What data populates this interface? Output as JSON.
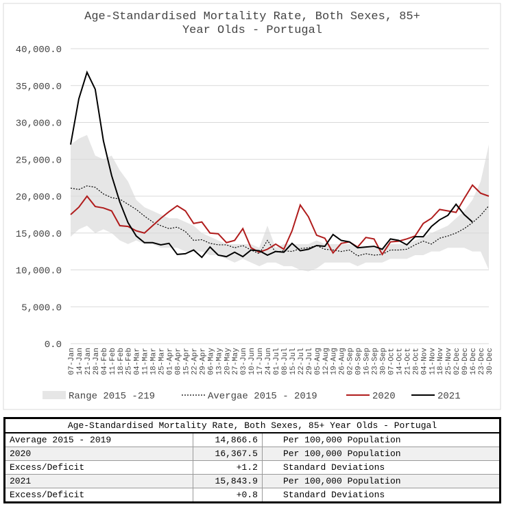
{
  "chart_data": {
    "type": "line",
    "title": [
      "Age-Standardised Mortality Rate, Both Sexes, 85+",
      "Year Olds - Portugal"
    ],
    "categories": [
      "07-Jan",
      "14-Jan",
      "21-Jan",
      "28-Jan",
      "04-Feb",
      "11-Feb",
      "18-Feb",
      "25-Feb",
      "04-Mar",
      "11-Mar",
      "18-Mar",
      "25-Mar",
      "01-Apr",
      "08-Apr",
      "15-Apr",
      "22-Apr",
      "29-Apr",
      "06-May",
      "13-May",
      "20-May",
      "27-May",
      "03-Jun",
      "10-Jun",
      "17-Jun",
      "24-Jun",
      "01-Jul",
      "08-Jul",
      "15-Jul",
      "22-Jul",
      "29-Jul",
      "05-Aug",
      "12-Aug",
      "19-Aug",
      "26-Aug",
      "02-Sep",
      "09-Sep",
      "16-Sep",
      "23-Sep",
      "30-Sep",
      "07-Oct",
      "14-Oct",
      "21-Oct",
      "28-Oct",
      "04-Nov",
      "11-Nov",
      "18-Nov",
      "25-Nov",
      "02-Dec",
      "09-Dec",
      "16-Dec",
      "23-Dec",
      "30-Dec"
    ],
    "ylim": [
      0,
      40000
    ],
    "yticks": [
      {
        "value": 0,
        "label": "0.0"
      },
      {
        "value": 5000,
        "label": "5,000.0"
      },
      {
        "value": 10000,
        "label": "10,000.0"
      },
      {
        "value": 15000,
        "label": "15,000.0"
      },
      {
        "value": 20000,
        "label": "20,000.0"
      },
      {
        "value": 25000,
        "label": "25,000.0"
      },
      {
        "value": 30000,
        "label": "30,000.0"
      },
      {
        "value": 35000,
        "label": "35,000.0"
      },
      {
        "value": 40000,
        "label": "40,000.0"
      }
    ],
    "grid": true,
    "legend": "bottom",
    "series": [
      {
        "name": "Range 2015 -219",
        "style": "range",
        "color": "#e6e6e6",
        "high": [
          27000,
          27800,
          28300,
          25500,
          25000,
          25500,
          23500,
          22000,
          19500,
          18500,
          18000,
          17500,
          17000,
          17000,
          16500,
          16000,
          15000,
          14500,
          14000,
          13500,
          13500,
          13500,
          13500,
          13000,
          16000,
          13000,
          13500,
          13500,
          13500,
          13500,
          14000,
          13500,
          13500,
          13500,
          13500,
          13000,
          13000,
          13000,
          13000,
          13500,
          13500,
          13500,
          14000,
          14500,
          15000,
          15500,
          16000,
          17000,
          18000,
          19500,
          22000,
          27000
        ],
        "low": [
          14500,
          15500,
          16000,
          15000,
          15500,
          15000,
          14000,
          13500,
          14000,
          13500,
          13500,
          13000,
          13000,
          13000,
          12500,
          12500,
          12500,
          12000,
          12000,
          11500,
          11000,
          11500,
          11000,
          10500,
          11000,
          11000,
          10500,
          10500,
          10000,
          9800,
          10200,
          11000,
          11000,
          11000,
          11000,
          10500,
          11000,
          11000,
          11000,
          11500,
          11500,
          11500,
          12000,
          12000,
          12500,
          12500,
          13000,
          13000,
          13000,
          12500,
          12500,
          10000
        ]
      },
      {
        "name": "Avergae 2015 - 2019",
        "style": "dotted",
        "color": "#000000",
        "values": [
          21100,
          20900,
          21400,
          21200,
          20300,
          19800,
          19600,
          18900,
          18200,
          17300,
          16500,
          16000,
          15600,
          15800,
          15200,
          14000,
          14100,
          13600,
          13400,
          13400,
          13000,
          13300,
          12700,
          12200,
          14000,
          12400,
          12600,
          12500,
          12900,
          13000,
          13300,
          12800,
          12700,
          12500,
          12700,
          11900,
          12200,
          12000,
          12100,
          12700,
          12700,
          12800,
          13400,
          13900,
          13500,
          14300,
          14600,
          15000,
          15600,
          16400,
          17400,
          18700
        ]
      },
      {
        "name": "2020",
        "style": "solid",
        "color": "#b01c1c",
        "values": [
          17500,
          18500,
          20000,
          18600,
          18400,
          18000,
          16000,
          15900,
          15300,
          15000,
          16000,
          17000,
          17900,
          18700,
          18000,
          16300,
          16500,
          15000,
          14900,
          13700,
          14000,
          15600,
          13000,
          12400,
          12800,
          13500,
          12800,
          15300,
          18800,
          17200,
          14700,
          14300,
          12300,
          13600,
          13800,
          13100,
          14400,
          14200,
          12100,
          13800,
          13900,
          14200,
          14600,
          16300,
          17000,
          18200,
          18000,
          17800,
          19700,
          21500,
          20400,
          20000
        ]
      },
      {
        "name": "2021",
        "style": "solid",
        "color": "#000000",
        "values": [
          27000,
          33200,
          36800,
          34500,
          27500,
          22800,
          19200,
          16400,
          14600,
          13700,
          13700,
          13400,
          13600,
          12100,
          12200,
          12700,
          11700,
          13100,
          12000,
          11800,
          12400,
          11800,
          12700,
          12600,
          12000,
          12500,
          12400,
          13600,
          12600,
          12800,
          13300,
          13200,
          14800,
          14000,
          13800,
          13000,
          13100,
          13200,
          12800,
          14200,
          14000,
          13400,
          14500,
          14500,
          15900,
          16800,
          17400,
          18900,
          17500,
          16500,
          null,
          null
        ]
      }
    ]
  },
  "table": {
    "title": "Age-Standardised Mortality Rate, Both Sexes, 85+ Year Olds - Portugal",
    "rows": [
      [
        "Average 2015 - 2019",
        "14,866.6",
        "Per 100,000 Population"
      ],
      [
        "2020",
        "16,367.5",
        "Per 100,000 Population"
      ],
      [
        "Excess/Deficit",
        "+1.2",
        "Standard Deviations"
      ],
      [
        "2021",
        "15,843.9",
        "Per 100,000 Population"
      ],
      [
        "Excess/Deficit",
        "+0.8",
        "Standard Deviations"
      ]
    ]
  }
}
